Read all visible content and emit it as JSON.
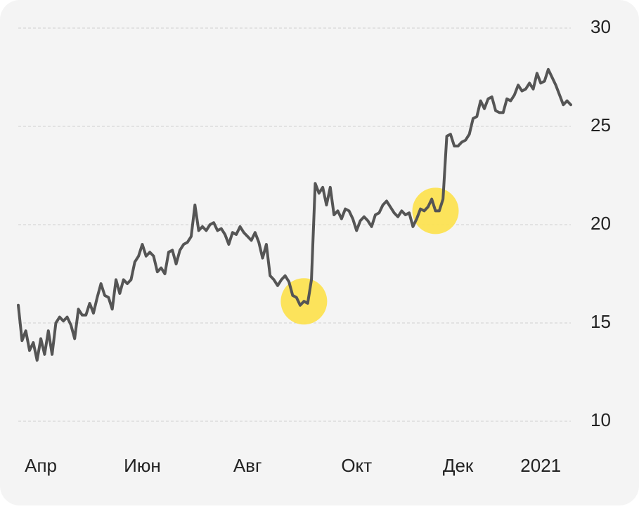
{
  "chart_data": {
    "type": "line",
    "categories": [
      null,
      null,
      null,
      null,
      null,
      null,
      "Апр",
      null,
      null,
      null,
      null,
      null,
      null,
      null,
      null,
      null,
      null,
      null,
      null,
      null,
      null,
      null,
      null,
      null,
      null,
      null,
      null,
      null,
      null,
      null,
      null,
      null,
      null,
      "Июн",
      null,
      null,
      null,
      null,
      null,
      null,
      null,
      null,
      null,
      null,
      null,
      null,
      null,
      null,
      null,
      null,
      null,
      null,
      null,
      null,
      null,
      null,
      null,
      null,
      null,
      null,
      null,
      "Авг",
      null,
      null,
      null,
      null,
      null,
      null,
      null,
      null,
      null,
      null,
      null,
      null,
      null,
      null,
      null,
      null,
      null,
      null,
      null,
      null,
      null,
      null,
      null,
      null,
      null,
      null,
      null,
      null,
      "Окт",
      null,
      null,
      null,
      null,
      null,
      null,
      null,
      null,
      null,
      null,
      null,
      null,
      null,
      null,
      null,
      null,
      null,
      null,
      null,
      null,
      null,
      null,
      null,
      null,
      null,
      null,
      "Дек",
      null,
      null,
      null,
      null,
      null,
      null,
      null,
      null,
      null,
      null,
      null,
      null,
      null,
      null,
      null,
      null,
      null,
      null,
      null,
      null,
      null,
      "2021",
      null,
      null,
      null,
      null,
      null,
      null,
      null,
      null
    ],
    "values": [
      15.9,
      14.1,
      14.6,
      13.6,
      14.0,
      13.1,
      14.2,
      13.4,
      14.6,
      13.4,
      15.0,
      15.3,
      15.1,
      15.3,
      14.9,
      14.2,
      15.7,
      15.4,
      15.4,
      16.0,
      15.5,
      16.3,
      17.0,
      16.4,
      16.3,
      15.7,
      17.2,
      16.5,
      17.2,
      17.0,
      17.2,
      18.1,
      18.4,
      19.0,
      18.4,
      18.6,
      18.4,
      17.6,
      17.8,
      17.5,
      18.6,
      18.7,
      18.0,
      18.7,
      19.0,
      19.1,
      19.4,
      21.0,
      19.7,
      19.9,
      19.7,
      20.0,
      20.1,
      19.7,
      19.8,
      19.5,
      19.0,
      19.6,
      19.5,
      19.9,
      19.6,
      19.4,
      19.2,
      19.6,
      19.1,
      18.3,
      19.0,
      17.4,
      17.2,
      16.9,
      17.2,
      17.4,
      17.1,
      16.4,
      16.3,
      15.9,
      16.1,
      16.0,
      17.2,
      22.1,
      21.6,
      21.9,
      21.0,
      21.9,
      20.5,
      20.7,
      20.3,
      20.8,
      20.7,
      20.3,
      19.7,
      20.2,
      20.4,
      20.2,
      19.9,
      20.5,
      20.6,
      21.0,
      21.2,
      20.9,
      20.6,
      20.4,
      20.7,
      20.5,
      20.6,
      19.9,
      20.3,
      20.8,
      20.7,
      20.9,
      21.3,
      20.7,
      20.7,
      21.3,
      24.5,
      24.6,
      24.0,
      24.0,
      24.2,
      24.3,
      24.6,
      25.4,
      25.5,
      26.3,
      25.9,
      26.4,
      26.5,
      25.8,
      25.7,
      25.7,
      26.4,
      26.3,
      26.6,
      27.1,
      26.8,
      26.9,
      27.2,
      26.9,
      27.7,
      27.2,
      27.3,
      27.9,
      27.5,
      27.1,
      26.6,
      26.1,
      26.3,
      26.1
    ],
    "color": "#555555",
    "ylim": [
      8.5,
      30.5
    ],
    "yticks": [
      10,
      15,
      20,
      25,
      30
    ],
    "grid": true
  }
}
